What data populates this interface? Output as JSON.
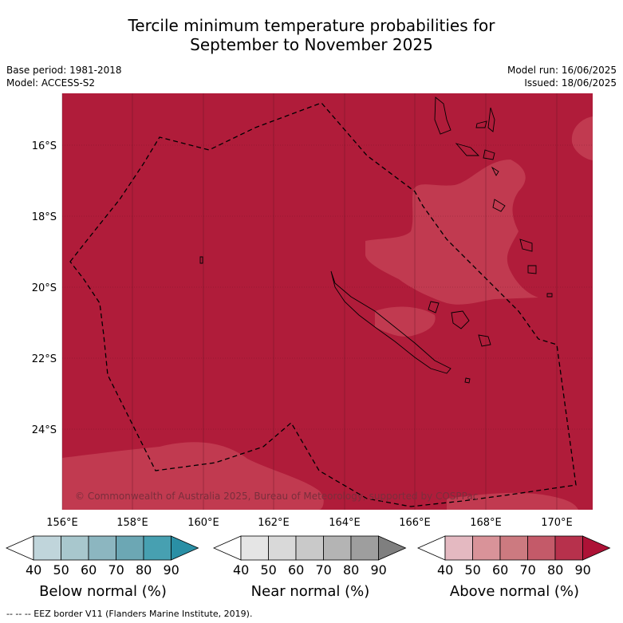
{
  "title": {
    "line1": "Tercile minimum temperature probabilities for",
    "line2": "September to November 2025"
  },
  "meta": {
    "base_period": "Base period: 1981-2018",
    "model": "Model: ACCESS-S2",
    "model_run": "Model run: 16/06/2025",
    "issued": "Issued: 18/06/2025"
  },
  "map": {
    "lat_labels": [
      "16°S",
      "18°S",
      "20°S",
      "22°S",
      "24°S"
    ],
    "lon_labels": [
      "156°E",
      "158°E",
      "160°E",
      "162°E",
      "164°E",
      "166°E",
      "168°E",
      "170°E"
    ],
    "copyright": "© Commonwealth of Australia 2025, Bureau of Meteorology, supported by COSPPac",
    "colors": {
      "above_80_90": "#b01c3a",
      "above_70_80": "#c13a50",
      "border": "#000000"
    }
  },
  "colorbars": [
    {
      "label": "Below normal (%)",
      "ticks": [
        "40",
        "50",
        "60",
        "70",
        "80",
        "90"
      ],
      "colors": [
        "#ffffff",
        "#c0d5db",
        "#a8c7cd",
        "#8cb6c0",
        "#6ca7b4",
        "#47a0b1",
        "#2a8fa5"
      ]
    },
    {
      "label": "Near normal (%)",
      "ticks": [
        "40",
        "50",
        "60",
        "70",
        "80",
        "90"
      ],
      "colors": [
        "#ffffff",
        "#e5e5e5",
        "#d9d9d9",
        "#c9c9c9",
        "#b4b4b4",
        "#9e9e9e",
        "#7f7f7f"
      ]
    },
    {
      "label": "Above normal (%)",
      "ticks": [
        "40",
        "50",
        "60",
        "70",
        "80",
        "90"
      ],
      "colors": [
        "#ffffff",
        "#e4b9c1",
        "#d99399",
        "#cc7a80",
        "#c45a69",
        "#b7314c",
        "#ad1236"
      ]
    }
  ],
  "footnote": "--  --  -- EEZ border V11 (Flanders Marine Institute, 2019)."
}
